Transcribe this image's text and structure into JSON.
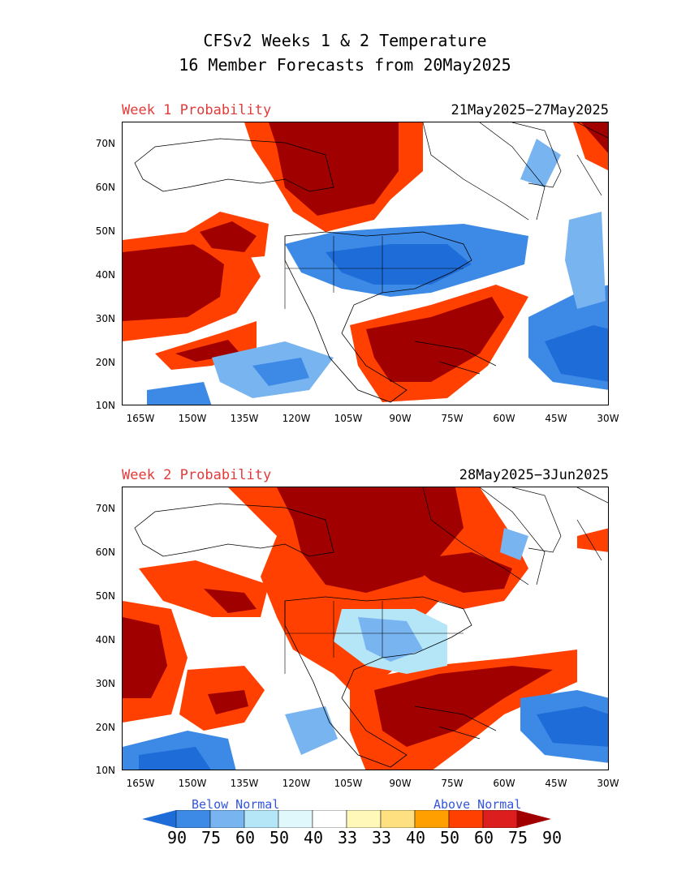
{
  "title_line1": "CFSv2 Weeks 1 & 2 Temperature",
  "title_line2": "16 Member Forecasts from 20May2025",
  "panels": [
    {
      "label": "Week 1 Probability",
      "dates": "21May2025−27May2025"
    },
    {
      "label": "Week 2 Probability",
      "dates": "28May2025−3Jun2025"
    }
  ],
  "lat_labels": [
    "70N",
    "60N",
    "50N",
    "40N",
    "30N",
    "20N",
    "10N"
  ],
  "lon_labels": [
    "165W",
    "150W",
    "135W",
    "120W",
    "105W",
    "90W",
    "75W",
    "60W",
    "45W",
    "30W"
  ],
  "legend": {
    "below_label": "Below Normal",
    "above_label": "Above Normal",
    "numbers": [
      "90",
      "75",
      "60",
      "50",
      "40",
      "33",
      "33",
      "40",
      "50",
      "60",
      "75",
      "90"
    ],
    "colors": [
      "#1e6cd8",
      "#3c8ae6",
      "#78b4f0",
      "#b4e6f8",
      "#e0f8fc",
      "#ffffff",
      "#fff8b8",
      "#ffe080",
      "#ffa000",
      "#ff4000",
      "#dc1e1e",
      "#a00000"
    ]
  },
  "colors": {
    "title_red": "#e33a3a",
    "legend_blue": "#3355dd"
  }
}
